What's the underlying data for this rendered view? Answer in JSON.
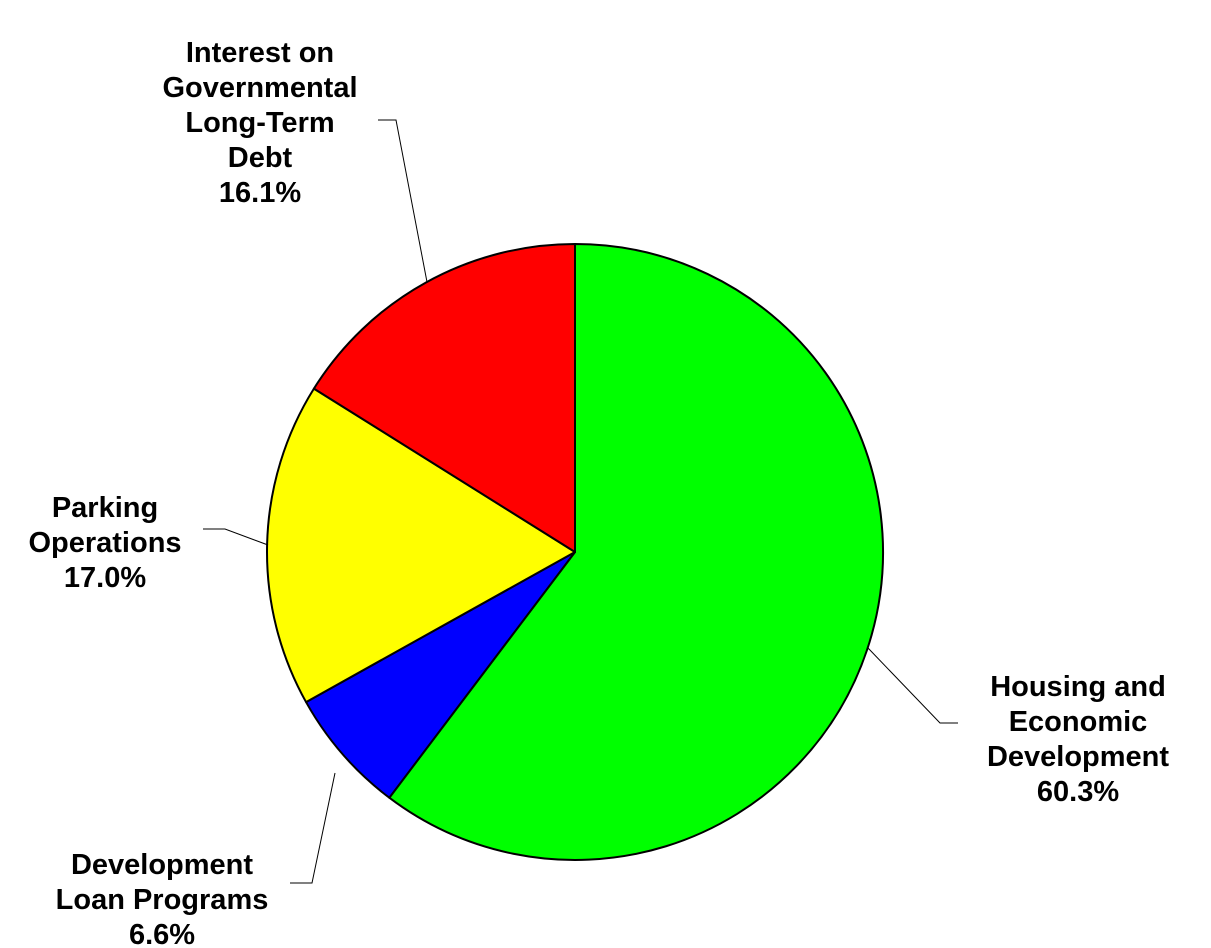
{
  "chart_data": {
    "type": "pie",
    "start_angle_deg": 0,
    "direction": "clockwise",
    "slices": [
      {
        "label_lines": [
          "Housing and",
          "Economic",
          "Development"
        ],
        "value": 60.3,
        "value_label": "60.3%",
        "color": "#00ff00"
      },
      {
        "label_lines": [
          "Development",
          "Loan Programs"
        ],
        "value": 6.6,
        "value_label": "6.6%",
        "color": "#0000ff"
      },
      {
        "label_lines": [
          "Parking",
          "Operations"
        ],
        "value": 17.0,
        "value_label": "17.0%",
        "color": "#ffff00"
      },
      {
        "label_lines": [
          "Interest on",
          "Governmental",
          "Long-Term",
          "Debt"
        ],
        "value": 16.1,
        "value_label": "16.1%",
        "color": "#ff0000"
      }
    ]
  }
}
